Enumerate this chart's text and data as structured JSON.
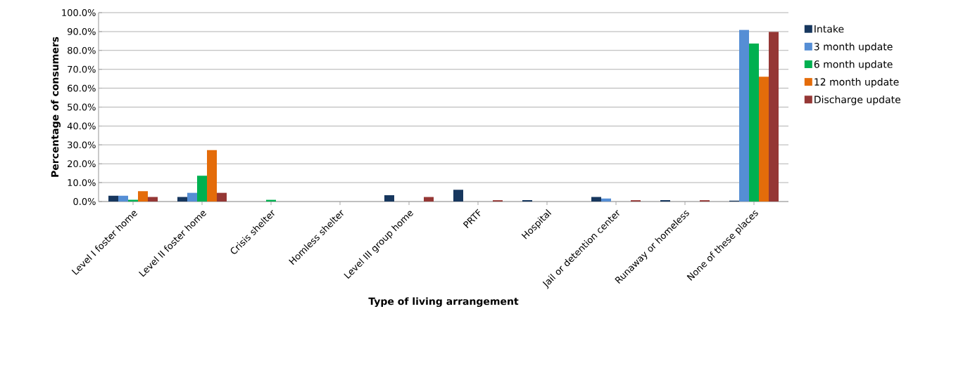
{
  "chart_data": {
    "type": "bar",
    "xlabel": "Type of living arrangement",
    "ylabel": "Percentage of consumers",
    "categories": [
      "Level I foster home",
      "Level II foster home",
      "Crisis shelter",
      "Homless shelter",
      "Level III group home",
      "PRTF",
      "Hospital",
      "Jail or detention center",
      "Runaway or homeless",
      "None of these places"
    ],
    "series": [
      {
        "name": "Intake",
        "color": "#17375e",
        "values": [
          3.1,
          2.4,
          0,
          0,
          3.3,
          6.2,
          0.7,
          2.4,
          0.7,
          0.5
        ]
      },
      {
        "name": "3 month update",
        "color": "#558ed5",
        "values": [
          3.1,
          4.6,
          0,
          0,
          0,
          0,
          0,
          1.6,
          0,
          90.9
        ]
      },
      {
        "name": "6 month update",
        "color": "#00b050",
        "values": [
          0.9,
          13.7,
          0.9,
          0,
          0,
          0,
          0,
          0,
          0,
          83.6
        ]
      },
      {
        "name": "12 month update",
        "color": "#e46c0a",
        "values": [
          5.5,
          27.2,
          0,
          0,
          0,
          0,
          0,
          0,
          0,
          66.1
        ]
      },
      {
        "name": "Discharge update",
        "color": "#953735",
        "values": [
          2.4,
          4.6,
          0,
          0,
          2.4,
          0.7,
          0,
          0.7,
          0.7,
          89.9
        ]
      }
    ],
    "ylim": [
      0,
      100
    ],
    "yticks": [
      {
        "value": 0,
        "label": "0.0%"
      },
      {
        "value": 10,
        "label": "10.0%"
      },
      {
        "value": 20,
        "label": "20.0%"
      },
      {
        "value": 30,
        "label": "30.0%"
      },
      {
        "value": 40,
        "label": "40.0%"
      },
      {
        "value": 50,
        "label": "50.0%"
      },
      {
        "value": 60,
        "label": "60.0%"
      },
      {
        "value": 70,
        "label": "70.0%"
      },
      {
        "value": 80,
        "label": "80.0%"
      },
      {
        "value": 90,
        "label": "90.0%"
      },
      {
        "value": 100,
        "label": "100.0%"
      }
    ],
    "grid": "y",
    "legend": "right"
  }
}
